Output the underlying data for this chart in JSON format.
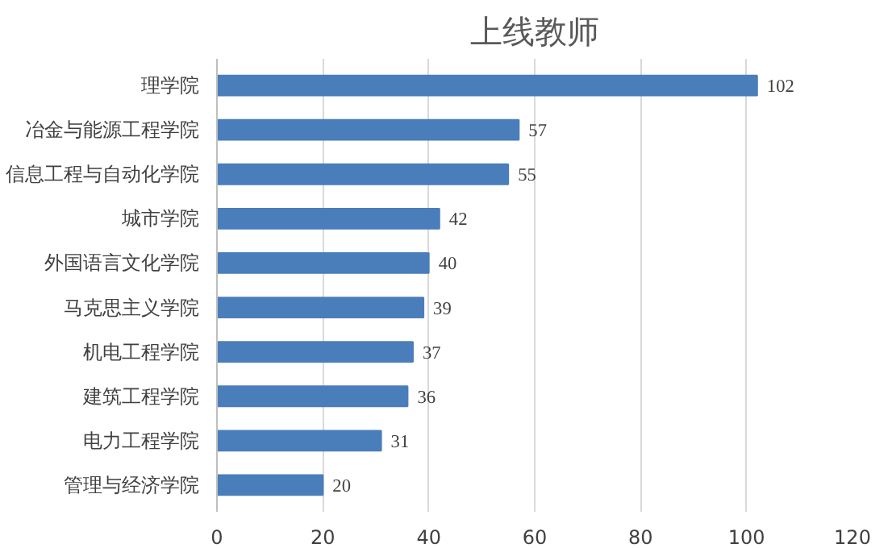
{
  "chart_data": {
    "type": "bar",
    "orientation": "horizontal",
    "title": "上线教师",
    "categories": [
      "理学院",
      "冶金与能源工程学院",
      "信息工程与自动化学院",
      "城市学院",
      "外国语言文化学院",
      "马克思主义学院",
      "机电工程学院",
      "建筑工程学院",
      "电力工程学院",
      "管理与经济学院"
    ],
    "values": [
      102,
      57,
      55,
      42,
      40,
      39,
      37,
      36,
      31,
      20
    ],
    "color": "#4a7ebb",
    "xlim": [
      0,
      120
    ],
    "xticks": [
      0,
      20,
      40,
      60,
      80,
      100,
      120
    ],
    "grid": "x",
    "data_labels": true
  }
}
